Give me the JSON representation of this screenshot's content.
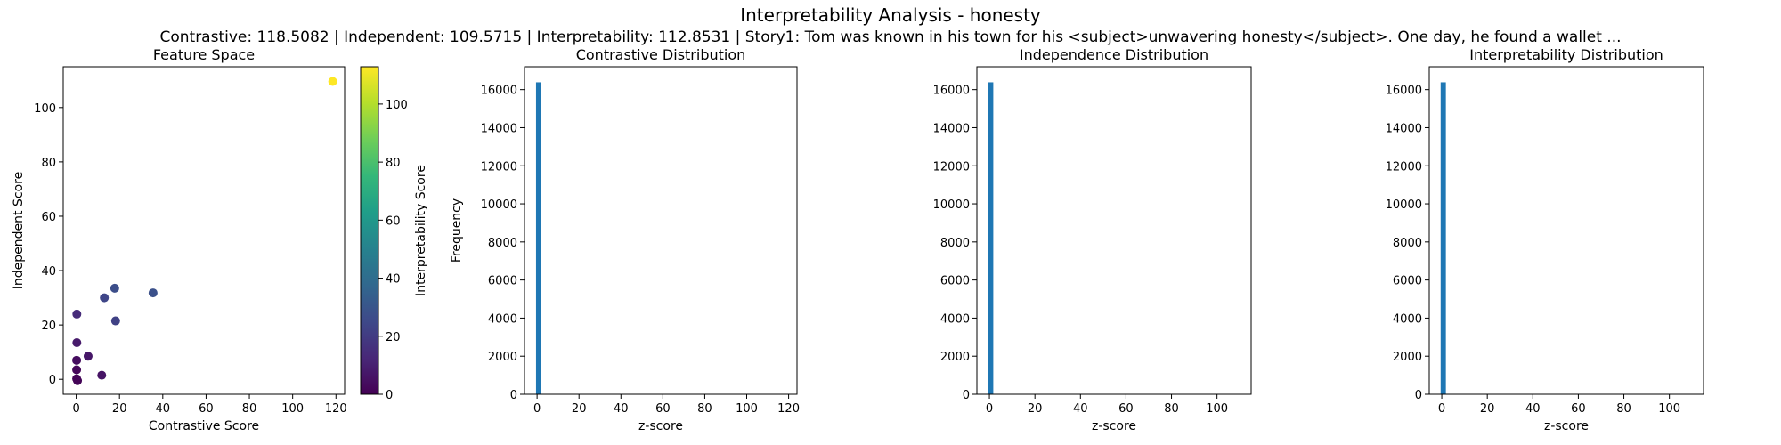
{
  "figure": {
    "title": "Interpretability Analysis - honesty",
    "subtitle": "Contrastive: 118.5082 | Independent: 109.5715 | Interpretability: 112.8531 | Story1: Tom was known in his town for his <subject>unwavering honesty</subject>. One day, he found a wallet ..."
  },
  "colors": {
    "bar": "#1f77b4",
    "viridis": [
      "#440154",
      "#482878",
      "#3e4989",
      "#31688e",
      "#26828e",
      "#1f9e89",
      "#35b779",
      "#6ece58",
      "#b5de2b",
      "#fde725"
    ]
  },
  "chart_data": [
    {
      "type": "scatter",
      "title": "Feature Space",
      "xlabel": "Contrastive Score",
      "ylabel": "Independent Score",
      "xlim": [
        -6,
        124
      ],
      "ylim": [
        -5.5,
        115
      ],
      "xticks": [
        0,
        20,
        40,
        60,
        80,
        100,
        120
      ],
      "yticks": [
        0,
        20,
        40,
        60,
        80,
        100
      ],
      "grid": false,
      "points": [
        {
          "x": 118.5,
          "y": 109.6,
          "c": 112.9
        },
        {
          "x": 35.5,
          "y": 31.8,
          "c": 28
        },
        {
          "x": 17.8,
          "y": 33.5,
          "c": 27
        },
        {
          "x": 13.0,
          "y": 30.0,
          "c": 24
        },
        {
          "x": 18.2,
          "y": 21.5,
          "c": 22
        },
        {
          "x": 0.3,
          "y": 24.0,
          "c": 14
        },
        {
          "x": 0.3,
          "y": 13.5,
          "c": 8
        },
        {
          "x": 5.5,
          "y": 8.5,
          "c": 7
        },
        {
          "x": 0.2,
          "y": 7.0,
          "c": 4
        },
        {
          "x": 0.2,
          "y": 3.5,
          "c": 2
        },
        {
          "x": 11.8,
          "y": 1.5,
          "c": 6
        },
        {
          "x": 0.2,
          "y": 0.2,
          "c": 1
        },
        {
          "x": 0.6,
          "y": -0.5,
          "c": 1
        }
      ],
      "colorbar": {
        "label": "Interpretability Score",
        "range": [
          0,
          112.85
        ],
        "ticks": [
          0,
          20,
          40,
          60,
          80,
          100
        ]
      }
    },
    {
      "type": "bar",
      "title": "Contrastive Distribution",
      "xlabel": "z-score",
      "ylabel": "Frequency",
      "xlim": [
        -6,
        124
      ],
      "ylim": [
        0,
        17200
      ],
      "xticks": [
        0,
        20,
        40,
        60,
        80,
        100,
        120
      ],
      "yticks": [
        0,
        2000,
        4000,
        6000,
        8000,
        10000,
        12000,
        14000,
        16000
      ],
      "bins": [
        {
          "x0": -0.5,
          "x1": 1.9,
          "count": 16384
        }
      ]
    },
    {
      "type": "bar",
      "title": "Independence Distribution",
      "xlabel": "z-score",
      "ylabel": "",
      "xlim": [
        -5.5,
        115
      ],
      "ylim": [
        0,
        17200
      ],
      "xticks": [
        0,
        20,
        40,
        60,
        80,
        100
      ],
      "yticks": [
        0,
        2000,
        4000,
        6000,
        8000,
        10000,
        12000,
        14000,
        16000
      ],
      "bins": [
        {
          "x0": -0.5,
          "x1": 1.7,
          "count": 16384
        }
      ]
    },
    {
      "type": "bar",
      "title": "Interpretability Distribution",
      "xlabel": "z-score",
      "ylabel": "",
      "xlim": [
        -5.5,
        115
      ],
      "ylim": [
        0,
        17200
      ],
      "xticks": [
        0,
        20,
        40,
        60,
        80,
        100
      ],
      "yticks": [
        0,
        2000,
        4000,
        6000,
        8000,
        10000,
        12000,
        14000,
        16000
      ],
      "bins": [
        {
          "x0": -0.5,
          "x1": 1.8,
          "count": 16384
        }
      ]
    }
  ]
}
